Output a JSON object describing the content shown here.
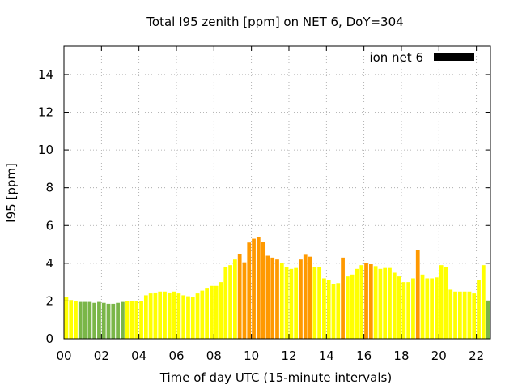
{
  "chart_data": {
    "type": "bar",
    "title": "Total I95 zenith [ppm] on NET 6, DoY=304",
    "xlabel": "Time of day UTC (15-minute intervals)",
    "ylabel": "I95 [ppm]",
    "xlim": [
      0,
      22.75
    ],
    "ylim": [
      0,
      15.5
    ],
    "x_ticks": [
      "00",
      "02",
      "04",
      "06",
      "08",
      "10",
      "12",
      "14",
      "16",
      "18",
      "20",
      "22"
    ],
    "x_tick_values": [
      0,
      2,
      4,
      6,
      8,
      10,
      12,
      14,
      16,
      18,
      20,
      22
    ],
    "y_ticks": [
      0,
      2,
      4,
      6,
      8,
      10,
      12,
      14
    ],
    "grid": true,
    "legend": {
      "label": "ion net 6",
      "color": "#000000",
      "position": "top-right"
    },
    "bar_interval_hours": 0.25,
    "colors": {
      "green": "#7ab648",
      "yellow": "#ffff00",
      "orange": "#ff9900"
    },
    "start_hour": 0,
    "values": [
      2.2,
      2.05,
      2.0,
      1.95,
      1.95,
      1.95,
      1.9,
      1.95,
      1.9,
      1.85,
      1.85,
      1.9,
      1.95,
      2.0,
      2.0,
      2.0,
      2.0,
      2.3,
      2.4,
      2.45,
      2.5,
      2.5,
      2.45,
      2.5,
      2.4,
      2.3,
      2.25,
      2.2,
      2.4,
      2.55,
      2.7,
      2.8,
      2.8,
      3.0,
      3.8,
      3.9,
      4.2,
      4.5,
      4.05,
      5.1,
      5.3,
      5.4,
      5.15,
      4.4,
      4.3,
      4.2,
      4.0,
      3.8,
      3.7,
      3.75,
      4.2,
      4.45,
      4.35,
      3.8,
      3.8,
      3.2,
      3.1,
      2.9,
      2.95,
      4.3,
      3.3,
      3.4,
      3.7,
      3.9,
      4.0,
      3.95,
      3.85,
      3.7,
      3.75,
      3.75,
      3.5,
      3.3,
      3.0,
      3.0,
      3.2,
      4.7,
      3.4,
      3.2,
      3.2,
      3.25,
      3.9,
      3.8,
      2.6,
      2.5,
      2.5,
      2.5,
      2.5,
      2.4,
      3.1,
      3.9,
      2.0
    ],
    "bar_colors": [
      "yellow",
      "yellow",
      "yellow",
      "green",
      "green",
      "green",
      "green",
      "green",
      "green",
      "green",
      "green",
      "green",
      "green",
      "yellow",
      "yellow",
      "yellow",
      "yellow",
      "yellow",
      "yellow",
      "yellow",
      "yellow",
      "yellow",
      "yellow",
      "yellow",
      "yellow",
      "yellow",
      "yellow",
      "yellow",
      "yellow",
      "yellow",
      "yellow",
      "yellow",
      "yellow",
      "yellow",
      "yellow",
      "yellow",
      "yellow",
      "orange",
      "orange",
      "orange",
      "orange",
      "orange",
      "orange",
      "orange",
      "orange",
      "orange",
      "yellow",
      "yellow",
      "yellow",
      "yellow",
      "orange",
      "orange",
      "orange",
      "yellow",
      "yellow",
      "yellow",
      "yellow",
      "yellow",
      "yellow",
      "orange",
      "yellow",
      "yellow",
      "yellow",
      "yellow",
      "orange",
      "orange",
      "yellow",
      "yellow",
      "yellow",
      "yellow",
      "yellow",
      "yellow",
      "yellow",
      "yellow",
      "yellow",
      "orange",
      "yellow",
      "yellow",
      "yellow",
      "yellow",
      "yellow",
      "yellow",
      "yellow",
      "yellow",
      "yellow",
      "yellow",
      "yellow",
      "yellow",
      "yellow",
      "yellow",
      "green"
    ]
  }
}
